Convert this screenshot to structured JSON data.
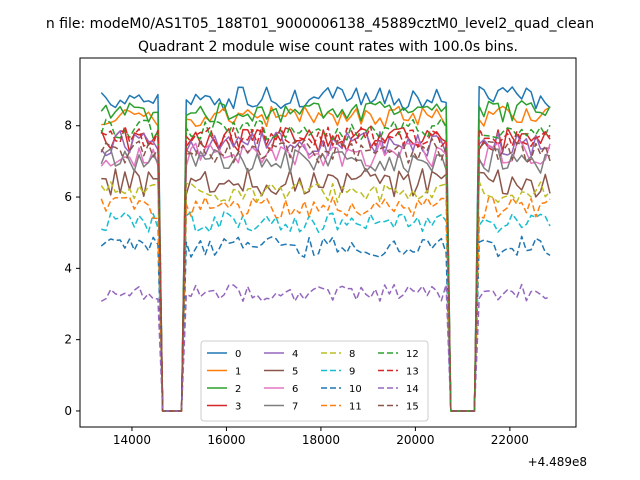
{
  "figure": {
    "suptitle": "n file: modeM0/AS1T05_188T01_9000006138_45889cztM0_level2_quad_clean",
    "title": "Quadrant 2 module wise count rates with 100.0s bins.",
    "offset_text": "+4.489e8"
  },
  "chart_data": {
    "type": "line",
    "title": "Quadrant 2 module wise count rates with 100.0s bins.",
    "xlabel": "",
    "ylabel": "",
    "x_offset": 448900000,
    "xlim": [
      12900,
      23400
    ],
    "ylim": [
      -0.45,
      9.9
    ],
    "x_ticks": [
      14000,
      16000,
      18000,
      20000,
      22000
    ],
    "x_tick_labels": [
      "14000",
      "16000",
      "18000",
      "20000",
      "22000"
    ],
    "y_ticks": [
      0,
      2,
      4,
      6,
      8
    ],
    "y_tick_labels": [
      "0",
      "2",
      "4",
      "6",
      "8"
    ],
    "grid": false,
    "legend_position": "lower-center",
    "legend_columns": 4,
    "x_range": [
      13350,
      22850
    ],
    "x_step": 100,
    "segments": [
      {
        "start": 13350,
        "end": 14550
      },
      {
        "start": 15150,
        "end": 20650
      },
      {
        "start": 21350,
        "end": 22850
      }
    ],
    "gaps": [
      {
        "start": 14650,
        "end": 15050
      },
      {
        "start": 20750,
        "end": 21250
      }
    ],
    "series": [
      {
        "name": "0",
        "mean": 8.75,
        "spread": 0.35,
        "color": "#1f77b4",
        "dash": "solid"
      },
      {
        "name": "1",
        "mean": 8.25,
        "spread": 0.3,
        "color": "#ff7f0e",
        "dash": "solid"
      },
      {
        "name": "2",
        "mean": 8.4,
        "spread": 0.3,
        "color": "#2ca02c",
        "dash": "solid"
      },
      {
        "name": "3",
        "mean": 7.6,
        "spread": 0.35,
        "color": "#d62728",
        "dash": "solid"
      },
      {
        "name": "4",
        "mean": 7.5,
        "spread": 0.35,
        "color": "#9467bd",
        "dash": "solid"
      },
      {
        "name": "5",
        "mean": 6.4,
        "spread": 0.4,
        "color": "#8c564b",
        "dash": "solid"
      },
      {
        "name": "6",
        "mean": 7.2,
        "spread": 0.35,
        "color": "#e377c2",
        "dash": "solid"
      },
      {
        "name": "7",
        "mean": 7.0,
        "spread": 0.35,
        "color": "#7f7f7f",
        "dash": "solid"
      },
      {
        "name": "8",
        "mean": 6.15,
        "spread": 0.3,
        "color": "#bcbd22",
        "dash": "dashed"
      },
      {
        "name": "9",
        "mean": 5.3,
        "spread": 0.3,
        "color": "#17becf",
        "dash": "dashed"
      },
      {
        "name": "10",
        "mean": 4.6,
        "spread": 0.3,
        "color": "#1f77b4",
        "dash": "dashed"
      },
      {
        "name": "11",
        "mean": 5.7,
        "spread": 0.3,
        "color": "#ff7f0e",
        "dash": "dashed"
      },
      {
        "name": "12",
        "mean": 7.9,
        "spread": 0.3,
        "color": "#2ca02c",
        "dash": "dashed"
      },
      {
        "name": "13",
        "mean": 7.7,
        "spread": 0.3,
        "color": "#d62728",
        "dash": "dashed"
      },
      {
        "name": "14",
        "mean": 3.3,
        "spread": 0.25,
        "color": "#9467bd",
        "dash": "dashed"
      },
      {
        "name": "15",
        "mean": 7.3,
        "spread": 0.35,
        "color": "#8c564b",
        "dash": "dashed"
      }
    ]
  }
}
